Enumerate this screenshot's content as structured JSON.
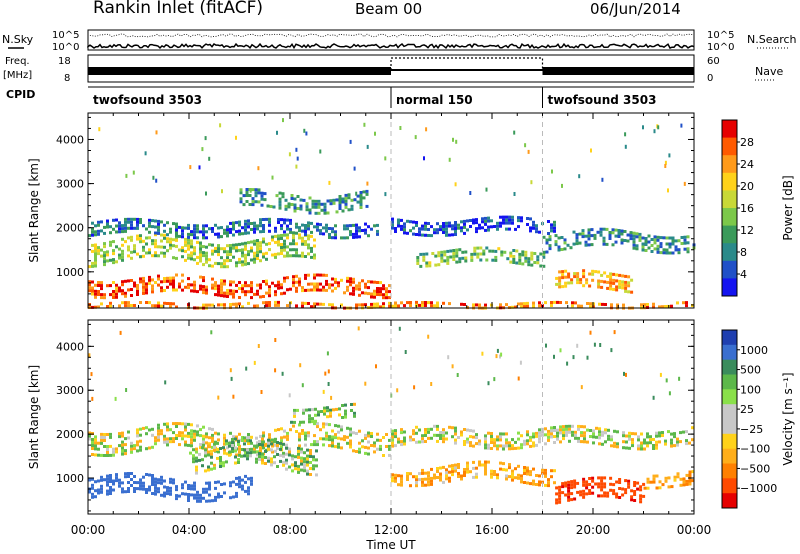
{
  "header": {
    "station": "Rankin Inlet (fitACF)",
    "beam": "Beam 00",
    "date": "06/Jun/2014"
  },
  "strip_labels": {
    "nsky": "N.Sky",
    "nsky_ticks": [
      "10^5",
      "10^0"
    ],
    "nsearch": "N.Search",
    "nsearch_ticks": [
      "10^5",
      "10^0"
    ],
    "freq_line1": "Freq.",
    "freq_line2": "[MHz]",
    "freq_ticks": [
      "18",
      "8"
    ],
    "nave": "Nave",
    "nave_ticks": [
      "60",
      "0"
    ],
    "cpid": "CPID"
  },
  "cpid_segments": [
    {
      "label": "twofsound 3503",
      "start_h": 0,
      "end_h": 12
    },
    {
      "label": "normal 150",
      "start_h": 12,
      "end_h": 18
    },
    {
      "label": "twofsound 3503",
      "start_h": 18,
      "end_h": 24
    }
  ],
  "colorbars": {
    "power": {
      "label": "Power [dB]",
      "ticks": [
        "28",
        "24",
        "20",
        "16",
        "12",
        "8",
        "4"
      ],
      "colors": [
        "#e60000",
        "#ff5a00",
        "#ff9a1a",
        "#ffd21a",
        "#c8d837",
        "#7cc84a",
        "#3a9a5a",
        "#2a8a8a",
        "#2050c8",
        "#1414f0"
      ]
    },
    "velocity": {
      "label": "Velocity [m s⁻¹]",
      "ticks": [
        "1000",
        "500",
        "100",
        "25",
        "−25",
        "−100",
        "−500",
        "−1000"
      ],
      "colors": [
        "#1f3fb0",
        "#3a6fd0",
        "#3a8c5c",
        "#5cb84a",
        "#8ae04a",
        "#c8c8c8",
        "#c8c8c8",
        "#ffd21a",
        "#ffae1a",
        "#ff8000",
        "#ff4a00",
        "#e60000"
      ]
    }
  },
  "chart_data": [
    {
      "type": "heatmap",
      "title": "",
      "quantity": "Power",
      "xlabel": "Time UT",
      "ylabel": "Slant Range [km]",
      "x_ticks": [
        "00:00",
        "04:00",
        "08:00",
        "12:00",
        "16:00",
        "20:00",
        "00:00"
      ],
      "y_ticks": [
        "1000",
        "2000",
        "3000",
        "4000"
      ],
      "xlim_hours": [
        0,
        24
      ],
      "ylim_km": [
        180,
        4600
      ],
      "bands": [
        {
          "t0": 0.0,
          "t1": 12.0,
          "r_center": 700,
          "r_width": 350,
          "value_db": 26
        },
        {
          "t0": 0.0,
          "t1": 9.0,
          "r_center": 1500,
          "r_width": 500,
          "value_db": 16
        },
        {
          "t0": 0.0,
          "t1": 11.5,
          "r_center": 2000,
          "r_width": 300,
          "value_db": 8
        },
        {
          "t0": 6.0,
          "t1": 11.0,
          "r_center": 2600,
          "r_width": 400,
          "value_db": 10
        },
        {
          "t0": 12.0,
          "t1": 18.5,
          "r_center": 2050,
          "r_width": 300,
          "value_db": 6
        },
        {
          "t0": 13.0,
          "t1": 18.0,
          "r_center": 1350,
          "r_width": 300,
          "value_db": 14
        },
        {
          "t0": 18.0,
          "t1": 24.0,
          "r_center": 1700,
          "r_width": 400,
          "value_db": 10
        },
        {
          "t0": 18.5,
          "t1": 21.5,
          "r_center": 800,
          "r_width": 350,
          "value_db": 22
        },
        {
          "t0": 0.0,
          "t1": 24.0,
          "r_center": 250,
          "r_width": 120,
          "value_db": 24
        }
      ]
    },
    {
      "type": "heatmap",
      "title": "",
      "quantity": "Velocity",
      "xlabel": "Time UT",
      "ylabel": "Slant Range [km]",
      "x_ticks": [
        "00:00",
        "04:00",
        "08:00",
        "12:00",
        "16:00",
        "20:00",
        "00:00"
      ],
      "y_ticks": [
        "1000",
        "2000",
        "3000",
        "4000"
      ],
      "xlim_hours": [
        0,
        24
      ],
      "ylim_km": [
        180,
        4600
      ],
      "bands": [
        {
          "t0": 0.0,
          "t1": 12.0,
          "r_center": 1900,
          "r_width": 500,
          "value_ms": 0
        },
        {
          "t0": 12.0,
          "t1": 24.0,
          "r_center": 1950,
          "r_width": 350,
          "value_ms": 0
        },
        {
          "t0": 0.0,
          "t1": 6.5,
          "r_center": 800,
          "r_width": 450,
          "value_ms": 600
        },
        {
          "t0": 4.0,
          "t1": 9.0,
          "r_center": 1500,
          "r_width": 600,
          "value_ms": 80
        },
        {
          "t0": 8.0,
          "t1": 10.5,
          "r_center": 2500,
          "r_width": 300,
          "value_ms": 60
        },
        {
          "t0": 12.0,
          "t1": 18.5,
          "r_center": 1100,
          "r_width": 400,
          "value_ms": -150
        },
        {
          "t0": 18.5,
          "t1": 22.0,
          "r_center": 700,
          "r_width": 450,
          "value_ms": -700
        },
        {
          "t0": 22.0,
          "t1": 24.0,
          "r_center": 1000,
          "r_width": 300,
          "value_ms": -150
        }
      ]
    }
  ]
}
